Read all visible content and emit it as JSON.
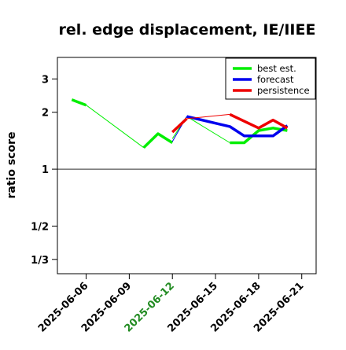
{
  "chart_data": {
    "type": "line",
    "title": "rel. edge displacement, IE/IIEE",
    "ylabel": "ratio score",
    "xlabel": "",
    "y_scale": "log",
    "ylim": [
      0.28,
      3.9
    ],
    "xlim": [
      "2025-06-04",
      "2025-06-22"
    ],
    "reference_line": 1,
    "y_ticks": [
      {
        "value": 3,
        "label": "3"
      },
      {
        "value": 2,
        "label": "2"
      },
      {
        "value": 1,
        "label": "1"
      },
      {
        "value": 0.5,
        "label": "1/2"
      },
      {
        "value": 0.3333,
        "label": "1/3"
      }
    ],
    "x_ticks": [
      {
        "date": "2025-06-06",
        "label": "2025-06-06",
        "color": "#000000"
      },
      {
        "date": "2025-06-09",
        "label": "2025-06-09",
        "color": "#000000"
      },
      {
        "date": "2025-06-12",
        "label": "2025-06-12",
        "color": "#228B22"
      },
      {
        "date": "2025-06-15",
        "label": "2025-06-15",
        "color": "#000000"
      },
      {
        "date": "2025-06-18",
        "label": "2025-06-18",
        "color": "#000000"
      },
      {
        "date": "2025-06-21",
        "label": "2025-06-21",
        "color": "#000000"
      }
    ],
    "legend_position": "top-right",
    "series": [
      {
        "name": "best est.",
        "color": "#00ee00",
        "thin_segments": [
          [
            [
              "2025-06-06",
              2.18
            ],
            [
              "2025-06-10",
              1.3
            ]
          ],
          [
            [
              "2025-06-12",
              1.45
            ],
            [
              "2025-06-13",
              1.9
            ]
          ],
          [
            [
              "2025-06-13",
              1.9
            ],
            [
              "2025-06-16",
              1.38
            ]
          ]
        ],
        "thick_segments": [
          [
            [
              "2025-06-05",
              2.33
            ],
            [
              "2025-06-06",
              2.18
            ]
          ],
          [
            [
              "2025-06-10",
              1.3
            ],
            [
              "2025-06-11",
              1.54
            ],
            [
              "2025-06-12",
              1.38
            ]
          ],
          [
            [
              "2025-06-16",
              1.38
            ],
            [
              "2025-06-17",
              1.38
            ],
            [
              "2025-06-18",
              1.6
            ],
            [
              "2025-06-19",
              1.65
            ],
            [
              "2025-06-20",
              1.6
            ]
          ]
        ]
      },
      {
        "name": "forecast",
        "color": "#0000ee",
        "thin_segments": [
          [
            [
              "2025-06-12",
              1.4
            ],
            [
              "2025-06-13",
              1.9
            ]
          ]
        ],
        "thick_segments": [
          [
            [
              "2025-06-13",
              1.9
            ],
            [
              "2025-06-15",
              1.75
            ],
            [
              "2025-06-16",
              1.68
            ],
            [
              "2025-06-17",
              1.5
            ],
            [
              "2025-06-19",
              1.5
            ],
            [
              "2025-06-20",
              1.7
            ]
          ]
        ]
      },
      {
        "name": "persistence",
        "color": "#ee0000",
        "thin_segments": [
          [
            [
              "2025-06-13",
              1.85
            ],
            [
              "2025-06-16",
              1.95
            ]
          ]
        ],
        "thick_segments": [
          [
            [
              "2025-06-12",
              1.57
            ],
            [
              "2025-06-13",
              1.85
            ]
          ],
          [
            [
              "2025-06-16",
              1.95
            ],
            [
              "2025-06-18",
              1.65
            ],
            [
              "2025-06-19",
              1.82
            ],
            [
              "2025-06-20",
              1.65
            ]
          ]
        ]
      }
    ]
  }
}
